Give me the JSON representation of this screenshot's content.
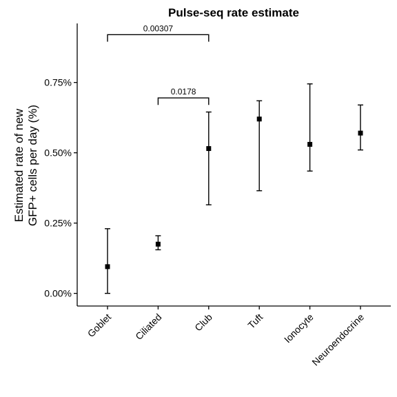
{
  "chart_data": {
    "type": "scatter",
    "title": "Pulse-seq rate estimate",
    "ylabel_lines": [
      "Estimated rate of new",
      "GFP+ cells per day (%)"
    ],
    "xlabel": "",
    "categories": [
      "Goblet",
      "Ciliated",
      "Club",
      "Tuft",
      "Ionocyte",
      "Neuroendocrine"
    ],
    "series": [
      {
        "values": [
          0.095,
          0.175,
          0.515,
          0.62,
          0.53,
          0.57
        ],
        "lower": [
          0.0,
          0.155,
          0.315,
          0.365,
          0.435,
          0.51
        ],
        "upper": [
          0.23,
          0.205,
          0.645,
          0.685,
          0.745,
          0.67
        ]
      }
    ],
    "yticks": [
      0.0,
      0.25,
      0.5,
      0.75
    ],
    "ytick_labels": [
      "0.00%",
      "0.25%",
      "0.50%",
      "0.75%"
    ],
    "ylim": [
      -0.045,
      0.96
    ],
    "grid": false,
    "annotations": [
      {
        "from": "Goblet",
        "to": "Club",
        "label": "0.00307",
        "y": 0.92,
        "tick_bottom": 0.895
      },
      {
        "from": "Ciliated",
        "to": "Club",
        "label": "0.0178",
        "y": 0.695,
        "tick_bottom": 0.67
      }
    ]
  }
}
